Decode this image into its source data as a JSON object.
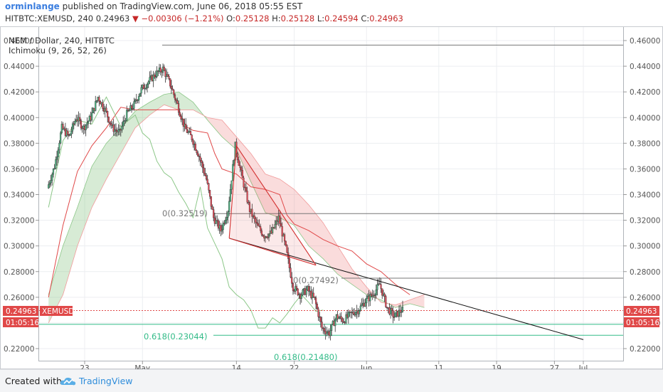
{
  "header": {
    "author": "orminlange",
    "published": "published on TradingView.com, June 06, 2018 05:55 EST",
    "symbol": "HITBTC:XEMUSD, 240",
    "last": "0.24963",
    "change": "−0.00306 (−1.21%)",
    "o_label": "O:",
    "o_value": "0.25128",
    "h_label": "H:",
    "h_value": "0.25128",
    "l_label": "L:",
    "l_value": "0.24594",
    "c_label": "C:",
    "c_value": "0.24963"
  },
  "legend": {
    "title": "NEM / Dollar, 240, HITBTC",
    "indicator": "Ichimoku (9, 26, 52, 26)"
  },
  "price_badges": {
    "left_price": "0.24963",
    "left_symbol": "XEMUSD",
    "left_countdown": "01:05:16",
    "right_price": "0.24963",
    "right_countdown": "01:05:16"
  },
  "annotations": {
    "fib0_a": "0(0.32519)",
    "fib0_b": "0(0.27492)",
    "fib618_a": "0.618(0.23044)",
    "fib618_b": "0.618(0.21480)"
  },
  "footer": {
    "created_with": "Created with",
    "brand": "TradingView"
  },
  "colors": {
    "bull": "#53b987",
    "bear": "#eb4d5c",
    "cloud_bull": "#8cc788",
    "cloud_bear": "#f19b9b",
    "base_line": "#e04848",
    "lagging": "#8cc788",
    "trendline": "#111111",
    "fib_green": "#33bb88",
    "level_gray": "#777777",
    "price_line": "#e04848"
  },
  "chart_data": {
    "type": "candlestick",
    "symbol": "NEM / Dollar",
    "timeframe": "240",
    "exchange": "HITBTC",
    "y_axis": {
      "min": 0.215,
      "max": 0.465,
      "ticks": [
        "0.46000",
        "0.44000",
        "0.42000",
        "0.40000",
        "0.38000",
        "0.36000",
        "0.34000",
        "0.32000",
        "0.30000",
        "0.28000",
        "0.26000",
        "0.24000",
        "0.22000"
      ]
    },
    "x_axis": {
      "ticks": [
        {
          "label": "23",
          "day": 23
        },
        {
          "label": "May",
          "day": 31
        },
        {
          "label": "14",
          "day": 44
        },
        {
          "label": "22",
          "day": 52
        },
        {
          "label": "Jun",
          "day": 62
        },
        {
          "label": "11",
          "day": 72
        },
        {
          "label": "19",
          "day": 80
        },
        {
          "label": "27",
          "day": 88
        },
        {
          "label": "Jul",
          "day": 92
        }
      ]
    },
    "series_close": [
      [
        18,
        0.345
      ],
      [
        19,
        0.362
      ],
      [
        20,
        0.392
      ],
      [
        21,
        0.385
      ],
      [
        22,
        0.4
      ],
      [
        23,
        0.392
      ],
      [
        24,
        0.4
      ],
      [
        25,
        0.416
      ],
      [
        26,
        0.406
      ],
      [
        27,
        0.392
      ],
      [
        28,
        0.388
      ],
      [
        29,
        0.403
      ],
      [
        30,
        0.41
      ],
      [
        31,
        0.422
      ],
      [
        32,
        0.428
      ],
      [
        33,
        0.434
      ],
      [
        34,
        0.438
      ],
      [
        35,
        0.426
      ],
      [
        36,
        0.41
      ],
      [
        37,
        0.392
      ],
      [
        38,
        0.384
      ],
      [
        39,
        0.37
      ],
      [
        40,
        0.352
      ],
      [
        41,
        0.322
      ],
      [
        42,
        0.312
      ],
      [
        43,
        0.328
      ],
      [
        44,
        0.378
      ],
      [
        45,
        0.352
      ],
      [
        46,
        0.328
      ],
      [
        47,
        0.316
      ],
      [
        48,
        0.308
      ],
      [
        49,
        0.31
      ],
      [
        50,
        0.322
      ],
      [
        51,
        0.298
      ],
      [
        52,
        0.268
      ],
      [
        53,
        0.262
      ],
      [
        54,
        0.266
      ],
      [
        55,
        0.258
      ],
      [
        56,
        0.236
      ],
      [
        57,
        0.232
      ],
      [
        58,
        0.245
      ],
      [
        59,
        0.242
      ],
      [
        60,
        0.247
      ],
      [
        61,
        0.25
      ],
      [
        62,
        0.257
      ],
      [
        63,
        0.262
      ],
      [
        64,
        0.27
      ],
      [
        65,
        0.252
      ],
      [
        66,
        0.245
      ],
      [
        67,
        0.25
      ]
    ],
    "ichimoku": {
      "params": [
        9,
        26,
        52,
        26
      ],
      "base_line": [
        [
          18,
          0.26
        ],
        [
          20,
          0.316
        ],
        [
          22,
          0.358
        ],
        [
          24,
          0.378
        ],
        [
          26,
          0.392
        ],
        [
          28,
          0.408
        ],
        [
          30,
          0.406
        ],
        [
          32,
          0.406
        ],
        [
          34,
          0.406
        ],
        [
          36,
          0.406
        ],
        [
          37,
          0.393
        ],
        [
          38,
          0.39
        ],
        [
          40,
          0.388
        ],
        [
          41,
          0.372
        ],
        [
          42,
          0.36
        ],
        [
          44,
          0.356
        ],
        [
          46,
          0.346
        ],
        [
          48,
          0.344
        ],
        [
          50,
          0.34
        ],
        [
          51,
          0.324
        ],
        [
          52,
          0.317
        ],
        [
          54,
          0.312
        ],
        [
          56,
          0.305
        ],
        [
          58,
          0.3
        ],
        [
          60,
          0.296
        ],
        [
          62,
          0.286
        ],
        [
          64,
          0.28
        ],
        [
          66,
          0.27
        ],
        [
          68,
          0.262
        ]
      ],
      "lagging_span": [
        [
          18,
          0.33
        ],
        [
          20,
          0.382
        ],
        [
          22,
          0.398
        ],
        [
          24,
          0.395
        ],
        [
          26,
          0.416
        ],
        [
          28,
          0.393
        ],
        [
          30,
          0.402
        ],
        [
          31,
          0.388
        ],
        [
          32,
          0.383
        ],
        [
          33,
          0.366
        ],
        [
          34,
          0.357
        ],
        [
          35,
          0.353
        ],
        [
          36,
          0.342
        ],
        [
          37,
          0.333
        ],
        [
          38,
          0.322
        ],
        [
          39,
          0.346
        ],
        [
          40,
          0.314
        ],
        [
          41,
          0.302
        ],
        [
          42,
          0.29
        ],
        [
          43,
          0.268
        ],
        [
          44,
          0.262
        ],
        [
          45,
          0.258
        ],
        [
          46,
          0.25
        ],
        [
          47,
          0.236
        ],
        [
          48,
          0.236
        ],
        [
          49,
          0.244
        ],
        [
          50,
          0.24
        ],
        [
          51,
          0.247
        ],
        [
          52,
          0.255
        ],
        [
          53,
          0.262
        ],
        [
          54,
          0.256
        ],
        [
          55,
          0.249
        ],
        [
          56,
          0.25
        ]
      ]
    },
    "drawings": {
      "trendline": [
        [
          43,
          0.306
        ],
        [
          92,
          0.227
        ]
      ],
      "wedge_upper": [
        [
          44,
          0.378
        ],
        [
          55,
          0.285
        ]
      ],
      "wedge_lower": [
        [
          43,
          0.306
        ],
        [
          55,
          0.285
        ]
      ],
      "levels": [
        0.4565,
        0.3252,
        0.2749,
        0.2304
      ],
      "fibonacci": [
        {
          "label": "0",
          "value": 0.32519
        },
        {
          "label": "0",
          "value": 0.27492
        },
        {
          "label": "0.618",
          "value": 0.23044
        },
        {
          "label": "0.618",
          "value": 0.2148
        }
      ]
    },
    "last_price": 0.24963
  }
}
